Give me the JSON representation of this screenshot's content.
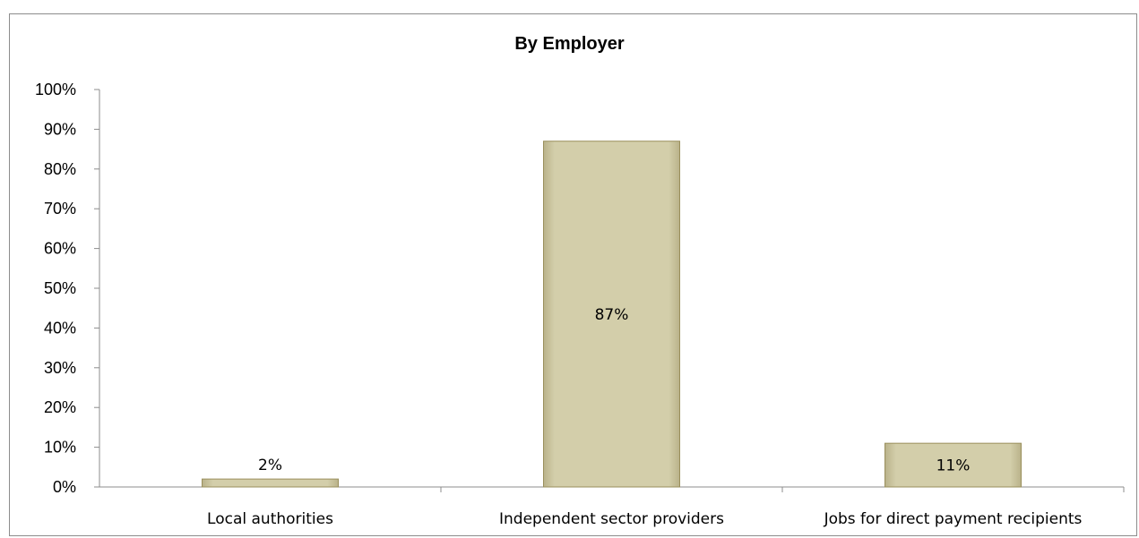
{
  "chart_data": {
    "type": "bar",
    "title": "By Employer",
    "xlabel": "",
    "ylabel": "",
    "categories": [
      "Local authorities",
      "Independent sector providers",
      "Jobs for direct payment recipients"
    ],
    "values": [
      2,
      87,
      11
    ],
    "data_labels": [
      "2%",
      "87%",
      "11%"
    ],
    "ylim": [
      0,
      100
    ],
    "y_ticks": [
      0,
      10,
      20,
      30,
      40,
      50,
      60,
      70,
      80,
      90,
      100
    ],
    "y_tick_labels": [
      "0%",
      "10%",
      "20%",
      "30%",
      "40%",
      "50%",
      "60%",
      "70%",
      "80%",
      "90%",
      "100%"
    ],
    "grid": false,
    "legend": "none",
    "colors": {
      "bar_fill": "#cfcaa0",
      "bar_stroke": "#9a8f5c",
      "axis": "#8c8c8c"
    }
  }
}
